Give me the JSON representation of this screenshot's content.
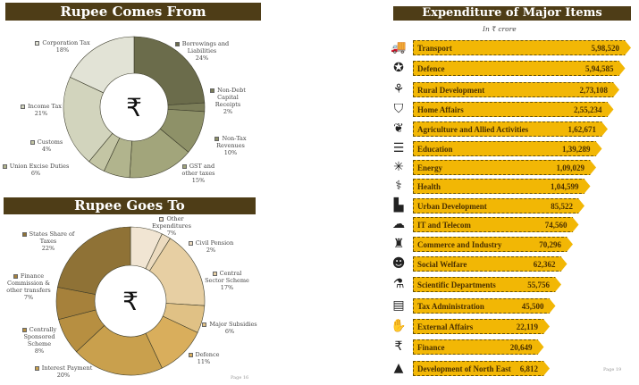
{
  "chart_data": [
    {
      "type": "pie",
      "title": "Rupee Comes From",
      "center_symbol": "₹",
      "slices": [
        {
          "label": "Borrowings and Liabilities",
          "value": 24,
          "pct": "24%",
          "color": "#6b6c4b"
        },
        {
          "label": "Non-Debt Capital Receipts",
          "value": 2,
          "pct": "2%",
          "color": "#7c7e59"
        },
        {
          "label": "Non-Tax Revenues",
          "value": 10,
          "pct": "10%",
          "color": "#8e9168"
        },
        {
          "label": "GST and other taxes",
          "value": 15,
          "pct": "15%",
          "color": "#a2a57b"
        },
        {
          "label": "Union Excise Duties",
          "value": 6,
          "pct": "6%",
          "color": "#b1b48d"
        },
        {
          "label": "Customs",
          "value": 4,
          "pct": "4%",
          "color": "#c3c5a4"
        },
        {
          "label": "Income Tax",
          "value": 21,
          "pct": "21%",
          "color": "#d2d4bd"
        },
        {
          "label": "Corporation Tax",
          "value": 18,
          "pct": "18%",
          "color": "#e2e3d6"
        }
      ]
    },
    {
      "type": "pie",
      "title": "Rupee Goes To",
      "center_symbol": "₹",
      "slices": [
        {
          "label": "Other Expenditures",
          "value": 7,
          "pct": "7%",
          "color": "#f1e5d3"
        },
        {
          "label": "Civil Pension",
          "value": 2,
          "pct": "2%",
          "color": "#ecdbbf"
        },
        {
          "label": "Central Sector Scheme",
          "value": 17,
          "pct": "17%",
          "color": "#e7cfa3"
        },
        {
          "label": "Major Subsidies",
          "value": 6,
          "pct": "6%",
          "color": "#e0c185"
        },
        {
          "label": "Defence",
          "value": 11,
          "pct": "11%",
          "color": "#d9ae5c"
        },
        {
          "label": "Interest Payment",
          "value": 20,
          "pct": "20%",
          "color": "#c9a04d"
        },
        {
          "label": "Centrally Sponsored Scheme",
          "value": 8,
          "pct": "8%",
          "color": "#b78f41"
        },
        {
          "label": "Finance Commission & other transfers",
          "value": 7,
          "pct": "7%",
          "color": "#a6813b"
        },
        {
          "label": "States Share of Taxes",
          "value": 22,
          "pct": "22%",
          "color": "#8f7236"
        }
      ]
    },
    {
      "type": "bar",
      "orientation": "horizontal",
      "title": "Expenditure of Major Items",
      "subtitle": "In ₹ crore",
      "items": [
        {
          "label": "Transport",
          "value": 598520,
          "display": "5,98,520",
          "icon": "truck-icon",
          "glyph": "🚚"
        },
        {
          "label": "Defence",
          "value": 594585,
          "display": "5,94,585",
          "icon": "defence-emblem-icon",
          "glyph": "✪"
        },
        {
          "label": "Rural Development",
          "value": 273108,
          "display": "2,73,108",
          "icon": "farmer-icon",
          "glyph": "⚘"
        },
        {
          "label": "Home Affairs",
          "value": 255234,
          "display": "2,55,234",
          "icon": "shield-person-icon",
          "glyph": "⛉"
        },
        {
          "label": "Agriculture and Allied Activities",
          "value": 162671,
          "display": "1,62,671",
          "icon": "agriculture-icon",
          "glyph": "❦"
        },
        {
          "label": "Education",
          "value": 139289,
          "display": "1,39,289",
          "icon": "books-icon",
          "glyph": "☰"
        },
        {
          "label": "Energy",
          "value": 109029,
          "display": "1,09,029",
          "icon": "network-icon",
          "glyph": "✳"
        },
        {
          "label": "Health",
          "value": 104599,
          "display": "1,04,599",
          "icon": "health-icon",
          "glyph": "⚕"
        },
        {
          "label": "Urban Development",
          "value": 85522,
          "display": "85,522",
          "icon": "buildings-icon",
          "glyph": "▙"
        },
        {
          "label": "IT and Telecom",
          "value": 74560,
          "display": "74,560",
          "icon": "computer-cloud-icon",
          "glyph": "☁"
        },
        {
          "label": "Commerce and Industry",
          "value": 70296,
          "display": "70,296",
          "icon": "factory-icon",
          "glyph": "♜"
        },
        {
          "label": "Social Welfare",
          "value": 62362,
          "display": "62,362",
          "icon": "people-icon",
          "glyph": "☻"
        },
        {
          "label": "Scientific Departments",
          "value": 55756,
          "display": "55,756",
          "icon": "beaker-icon",
          "glyph": "⚗"
        },
        {
          "label": "Tax Administration",
          "value": 45500,
          "display": "45,500",
          "icon": "tax-document-icon",
          "glyph": "▤"
        },
        {
          "label": "External Affairs",
          "value": 22119,
          "display": "22,119",
          "icon": "handshake-icon",
          "glyph": "✋"
        },
        {
          "label": "Finance",
          "value": 20649,
          "display": "20,649",
          "icon": "rupee-icon",
          "glyph": "₹"
        },
        {
          "label": "Development of North East",
          "value": 6812,
          "display": "6,812",
          "icon": "mountains-icon",
          "glyph": "▲"
        }
      ]
    }
  ],
  "pages": {
    "left": "Page 16",
    "right": "Page 19"
  }
}
